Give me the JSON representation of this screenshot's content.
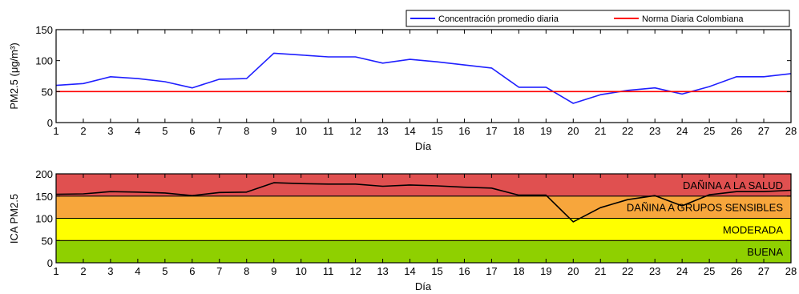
{
  "colors": {
    "series_blue": "#1f1fff",
    "norm_red": "#ff0000",
    "aqi_line": "#000000",
    "band_danina_salud": "#e05050",
    "band_grupos_sensibles": "#f7a63c",
    "band_moderada": "#ffff00",
    "band_buena": "#8fd000"
  },
  "chart_data": [
    {
      "type": "line",
      "xlabel": "Día",
      "ylabel": "PM2.5 (μg/m³)",
      "xlim": [
        1,
        28
      ],
      "ylim": [
        0,
        150
      ],
      "xticks": [
        "1",
        "2",
        "3",
        "4",
        "5",
        "6",
        "7",
        "8",
        "9",
        "10",
        "11",
        "12",
        "13",
        "14",
        "15",
        "16",
        "17",
        "18",
        "19",
        "20",
        "21",
        "22",
        "23",
        "24",
        "25",
        "26",
        "27",
        "28"
      ],
      "yticks": [
        "0",
        "50",
        "100",
        "150"
      ],
      "legend": {
        "position": "top-right"
      },
      "series": [
        {
          "name": "Concentración promedio diaria",
          "color": "#1f1fff",
          "x": [
            1,
            2,
            3,
            4,
            5,
            6,
            7,
            8,
            9,
            10,
            11,
            12,
            13,
            14,
            15,
            16,
            17,
            18,
            19,
            20,
            21,
            22,
            23,
            24,
            25,
            26,
            27,
            28
          ],
          "values": [
            60,
            63,
            74,
            71,
            66,
            56,
            70,
            71,
            112,
            109,
            106,
            106,
            96,
            102,
            98,
            93,
            88,
            57,
            57,
            31,
            45,
            52,
            56,
            46,
            58,
            74,
            74,
            79
          ]
        },
        {
          "name": "Norma Diaria Colombiana",
          "color": "#ff0000",
          "x": [
            1,
            28
          ],
          "values": [
            50,
            50
          ]
        }
      ]
    },
    {
      "type": "line",
      "xlabel": "Día",
      "ylabel": "ICA PM2.5",
      "xlim": [
        1,
        28
      ],
      "ylim": [
        0,
        200
      ],
      "xticks": [
        "1",
        "2",
        "3",
        "4",
        "5",
        "6",
        "7",
        "8",
        "9",
        "10",
        "11",
        "12",
        "13",
        "14",
        "15",
        "16",
        "17",
        "18",
        "19",
        "20",
        "21",
        "22",
        "23",
        "24",
        "25",
        "26",
        "27",
        "28"
      ],
      "yticks": [
        "0",
        "50",
        "100",
        "150",
        "200"
      ],
      "bands": [
        {
          "label": "BUENA",
          "from": 0,
          "to": 50,
          "color": "#8fd000"
        },
        {
          "label": "MODERADA",
          "from": 50,
          "to": 100,
          "color": "#ffff00"
        },
        {
          "label": "DAÑINA A GRUPOS SENSIBLES",
          "from": 100,
          "to": 150,
          "color": "#f7a63c"
        },
        {
          "label": "DAÑINA A LA SALUD",
          "from": 150,
          "to": 200,
          "color": "#e05050"
        }
      ],
      "series": [
        {
          "color": "#000000",
          "x": [
            1,
            2,
            3,
            4,
            5,
            6,
            7,
            8,
            9,
            10,
            11,
            12,
            13,
            14,
            15,
            16,
            17,
            18,
            19,
            20,
            21,
            22,
            23,
            24,
            25,
            26,
            27,
            28
          ],
          "values": [
            154,
            155,
            160,
            159,
            157,
            151,
            158,
            159,
            180,
            178,
            177,
            177,
            172,
            175,
            173,
            170,
            168,
            152,
            152,
            92,
            124,
            142,
            151,
            128,
            153,
            160,
            160,
            163
          ]
        }
      ]
    }
  ]
}
